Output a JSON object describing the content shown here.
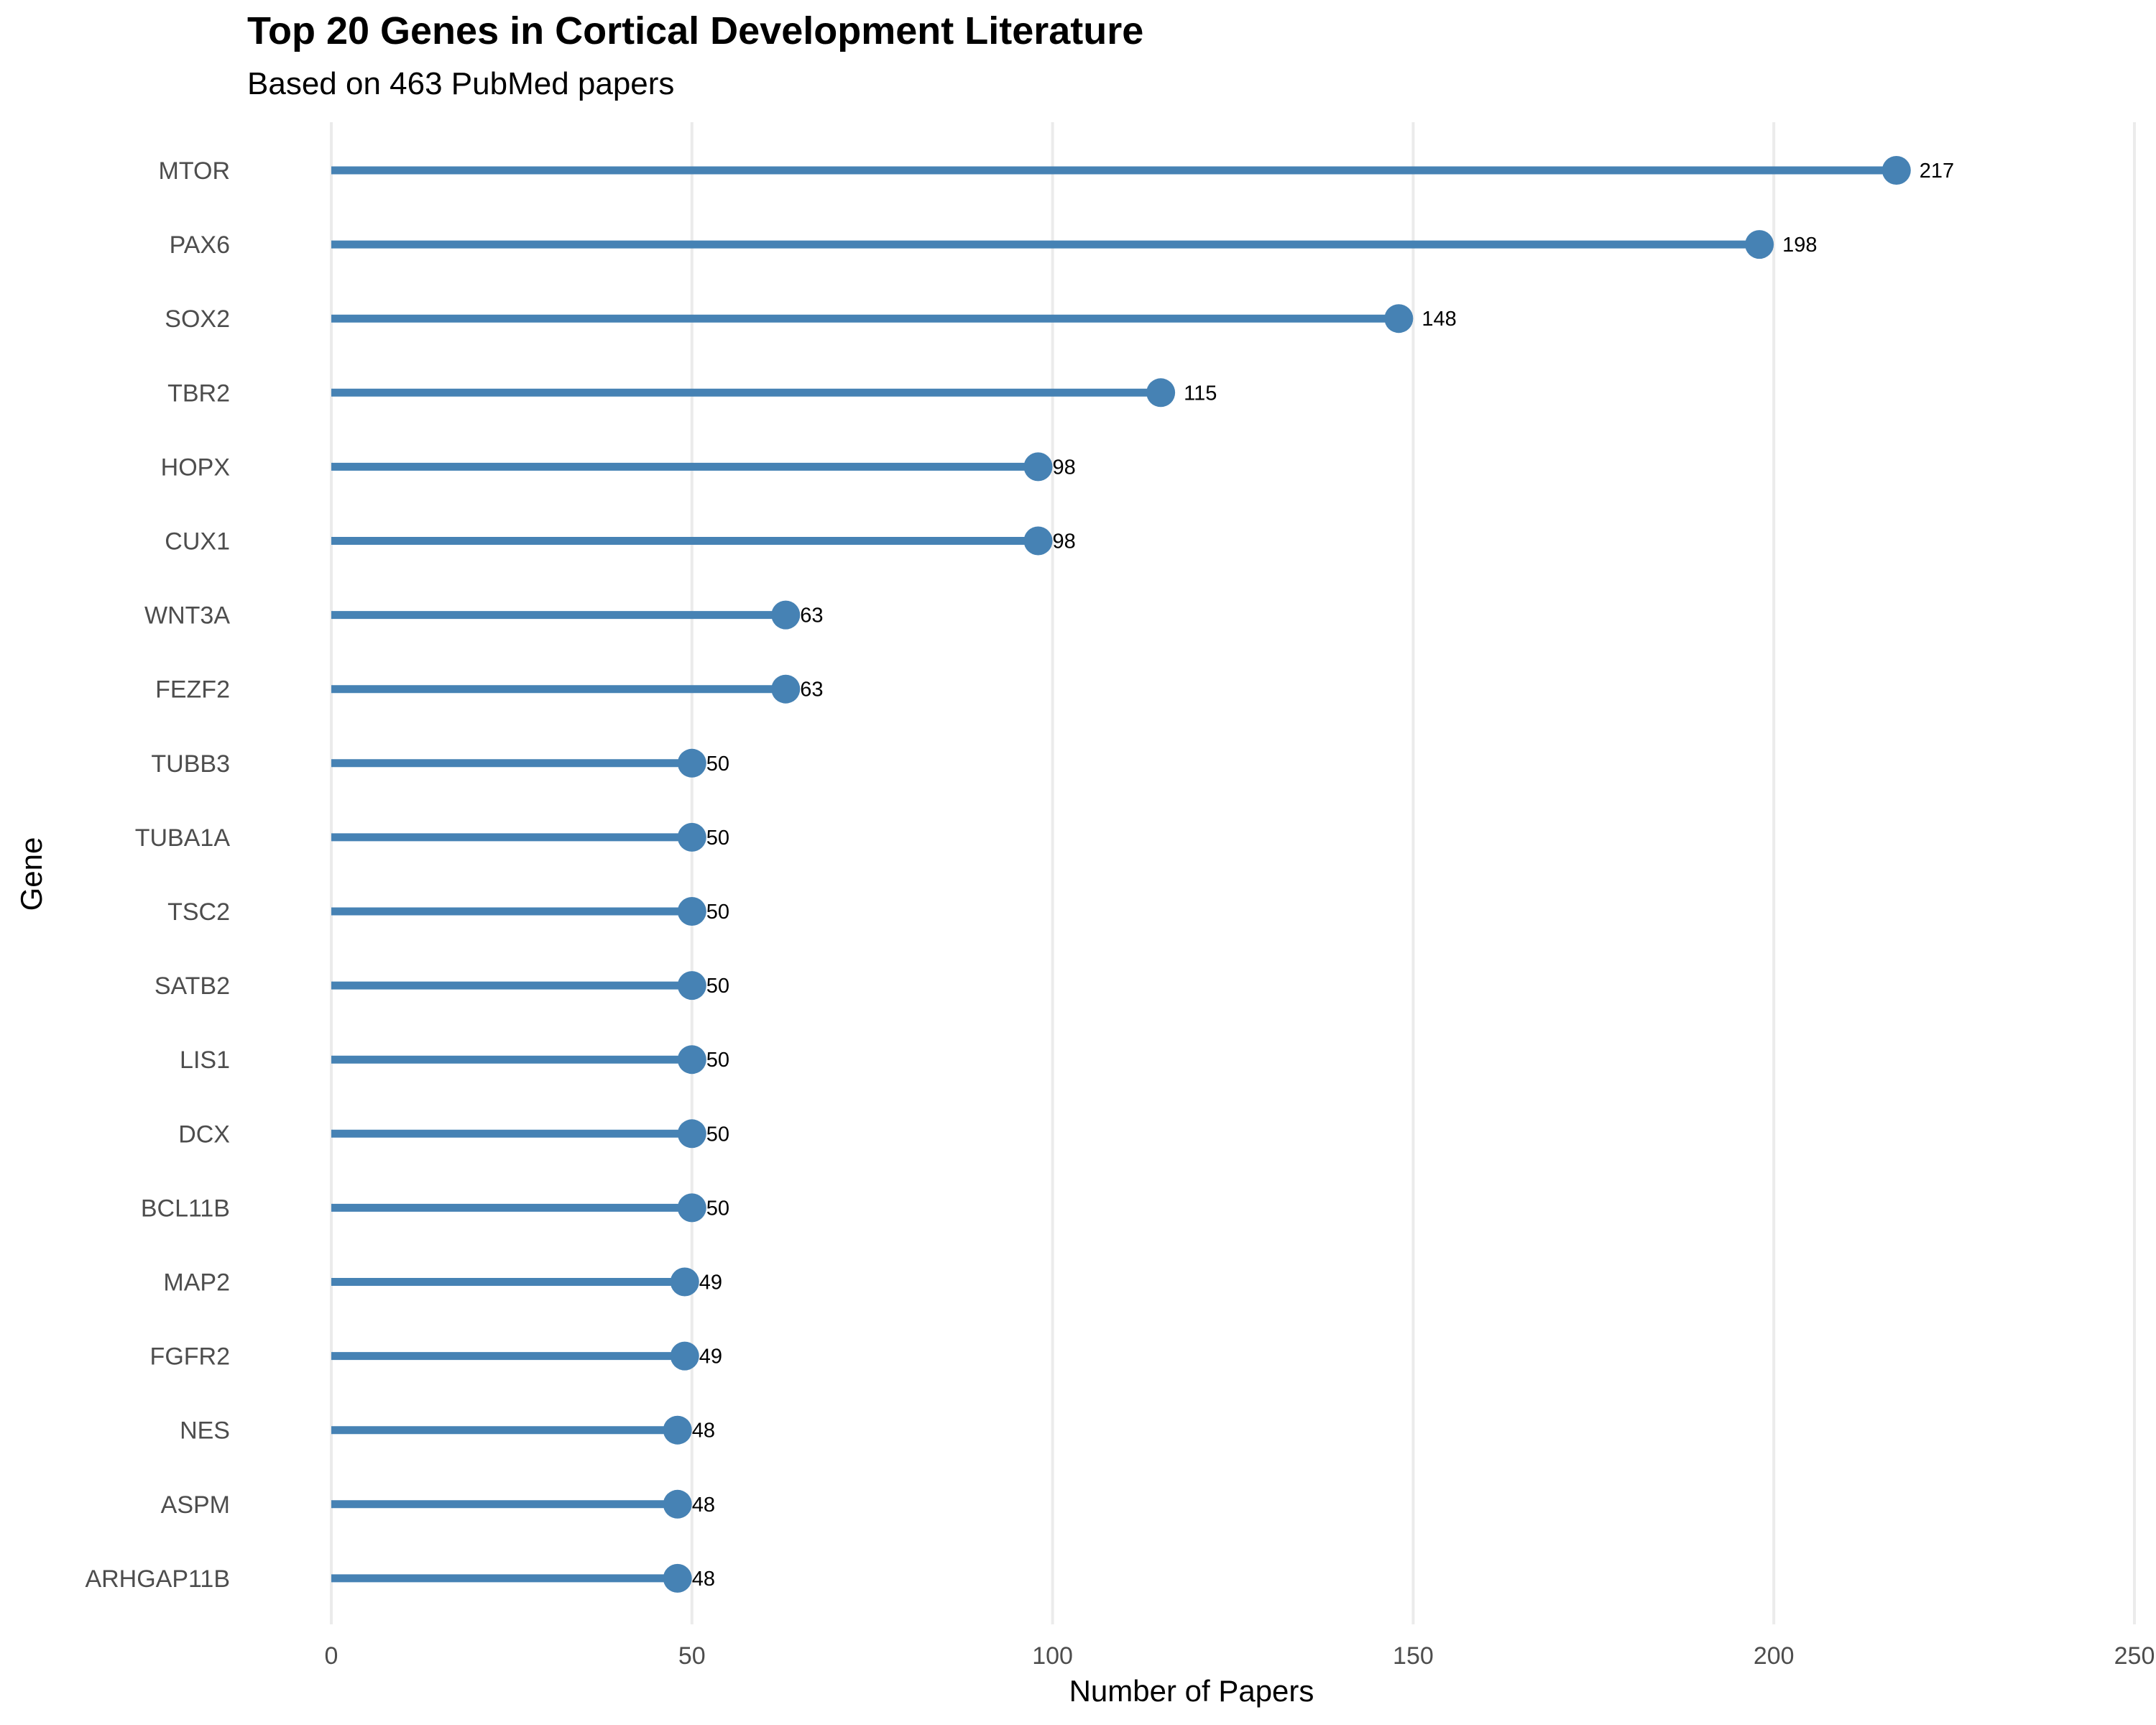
{
  "chart_data": {
    "type": "lollipop",
    "title": "Top 20 Genes in Cortical Development Literature",
    "subtitle": "Based on 463 PubMed papers",
    "xlabel": "Number of Papers",
    "ylabel": "Gene",
    "xlim": [
      0,
      250
    ],
    "x_ticks": [
      0,
      50,
      100,
      150,
      200,
      250
    ],
    "grid": "vertical",
    "color": "#4682B4",
    "categories": [
      "MTOR",
      "PAX6",
      "SOX2",
      "TBR2",
      "HOPX",
      "CUX1",
      "WNT3A",
      "FEZF2",
      "TUBB3",
      "TUBA1A",
      "TSC2",
      "SATB2",
      "LIS1",
      "DCX",
      "BCL11B",
      "MAP2",
      "FGFR2",
      "NES",
      "ASPM",
      "ARHGAP11B"
    ],
    "values": [
      217,
      198,
      148,
      115,
      98,
      98,
      63,
      63,
      50,
      50,
      50,
      50,
      50,
      50,
      50,
      49,
      49,
      48,
      48,
      48
    ]
  }
}
